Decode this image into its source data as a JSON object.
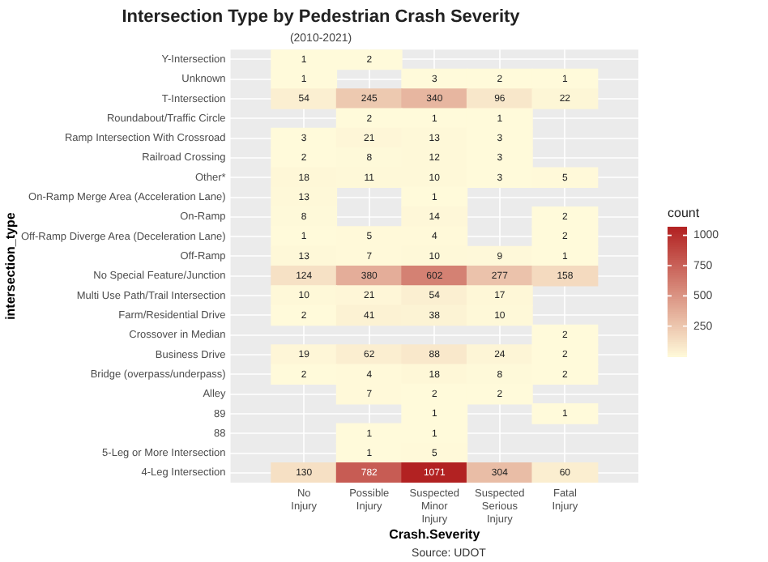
{
  "chart_data": {
    "type": "heatmap",
    "title": "Intersection Type by Pedestrian Crash Severity",
    "subtitle": "(2010-2021)",
    "xlabel": "Crash.Severity",
    "ylabel": "intersection_type",
    "clabel": "count",
    "annotations": [
      "Source: UDOT"
    ],
    "categories": [
      "No Injury",
      "Possible Injury",
      "Suspected Minor Injury",
      "Suspected Serious Injury",
      "Fatal Injury"
    ],
    "y_categories": [
      "Y-Intersection",
      "Unknown",
      "T-Intersection",
      "Roundabout/Traffic Circle",
      "Ramp Intersection With Crossroad",
      "Railroad Crossing",
      "Other*",
      "On-Ramp Merge Area (Acceleration Lane)",
      "On-Ramp",
      "Off-Ramp Diverge Area (Deceleration Lane)",
      "Off-Ramp",
      "No Special Feature/Junction",
      "Multi Use Path/Trail Intersection",
      "Farm/Residential Drive",
      "Crossover in Median",
      "Business Drive",
      "Bridge (overpass/underpass)",
      "Alley",
      "89",
      "88",
      "5-Leg or More Intersection",
      "4-Leg Intersection"
    ],
    "cells": [
      [
        1,
        2,
        null,
        null,
        null
      ],
      [
        1,
        null,
        3,
        2,
        1
      ],
      [
        54,
        245,
        340,
        96,
        22
      ],
      [
        null,
        2,
        1,
        1,
        null
      ],
      [
        3,
        21,
        13,
        3,
        null
      ],
      [
        2,
        8,
        12,
        3,
        null
      ],
      [
        18,
        11,
        10,
        3,
        5
      ],
      [
        13,
        null,
        1,
        null,
        null
      ],
      [
        8,
        null,
        14,
        null,
        2
      ],
      [
        1,
        5,
        4,
        null,
        2
      ],
      [
        13,
        7,
        10,
        9,
        1
      ],
      [
        124,
        380,
        602,
        277,
        158
      ],
      [
        10,
        21,
        54,
        17,
        null
      ],
      [
        2,
        41,
        38,
        10,
        null
      ],
      [
        null,
        null,
        null,
        null,
        2
      ],
      [
        19,
        62,
        88,
        24,
        2
      ],
      [
        2,
        4,
        18,
        8,
        2
      ],
      [
        null,
        7,
        2,
        2,
        null
      ],
      [
        null,
        null,
        1,
        null,
        1
      ],
      [
        null,
        1,
        1,
        null,
        null
      ],
      [
        null,
        1,
        5,
        null,
        null
      ],
      [
        130,
        782,
        1071,
        304,
        60
      ]
    ],
    "clim": [
      1,
      1071
    ],
    "cticks": [
      250,
      500,
      750,
      1000
    ],
    "data_labels": true,
    "grid": true
  }
}
